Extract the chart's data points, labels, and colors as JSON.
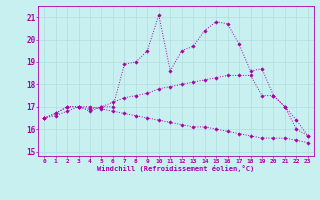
{
  "title": "",
  "xlabel": "Windchill (Refroidissement éolien,°C)",
  "ylabel": "",
  "bg_color": "#c8f0f0",
  "grid_color": "#b0dede",
  "line_color": "#aa00aa",
  "xlim": [
    -0.5,
    23.5
  ],
  "ylim": [
    14.8,
    21.5
  ],
  "yticks": [
    15,
    16,
    17,
    18,
    19,
    20,
    21
  ],
  "xticks": [
    0,
    1,
    2,
    3,
    4,
    5,
    6,
    7,
    8,
    9,
    10,
    11,
    12,
    13,
    14,
    15,
    16,
    17,
    18,
    19,
    20,
    21,
    22,
    23
  ],
  "series": [
    {
      "x": [
        0,
        1,
        2,
        3,
        4,
        5,
        6,
        7,
        8,
        9,
        10,
        11,
        12,
        13,
        14,
        15,
        16,
        17,
        18,
        19,
        20,
        21,
        22,
        23
      ],
      "y": [
        16.5,
        16.7,
        17.0,
        17.0,
        16.8,
        17.0,
        17.0,
        18.9,
        19.0,
        19.5,
        21.1,
        18.6,
        19.5,
        19.7,
        20.4,
        20.8,
        20.7,
        19.8,
        18.6,
        18.7,
        17.5,
        17.0,
        16.0,
        15.7
      ]
    },
    {
      "x": [
        0,
        1,
        2,
        3,
        4,
        5,
        6,
        7,
        8,
        9,
        10,
        11,
        12,
        13,
        14,
        15,
        16,
        17,
        18,
        19,
        20,
        21,
        22,
        23
      ],
      "y": [
        16.5,
        16.7,
        17.0,
        17.0,
        16.9,
        17.0,
        17.2,
        17.4,
        17.5,
        17.6,
        17.8,
        17.9,
        18.0,
        18.1,
        18.2,
        18.3,
        18.4,
        18.4,
        18.4,
        17.5,
        17.5,
        17.0,
        16.4,
        15.7
      ]
    },
    {
      "x": [
        0,
        1,
        2,
        3,
        4,
        5,
        6,
        7,
        8,
        9,
        10,
        11,
        12,
        13,
        14,
        15,
        16,
        17,
        18,
        19,
        20,
        21,
        22,
        23
      ],
      "y": [
        16.5,
        16.6,
        16.8,
        17.0,
        17.0,
        16.9,
        16.8,
        16.7,
        16.6,
        16.5,
        16.4,
        16.3,
        16.2,
        16.1,
        16.1,
        16.0,
        15.9,
        15.8,
        15.7,
        15.6,
        15.6,
        15.6,
        15.5,
        15.4
      ]
    }
  ]
}
